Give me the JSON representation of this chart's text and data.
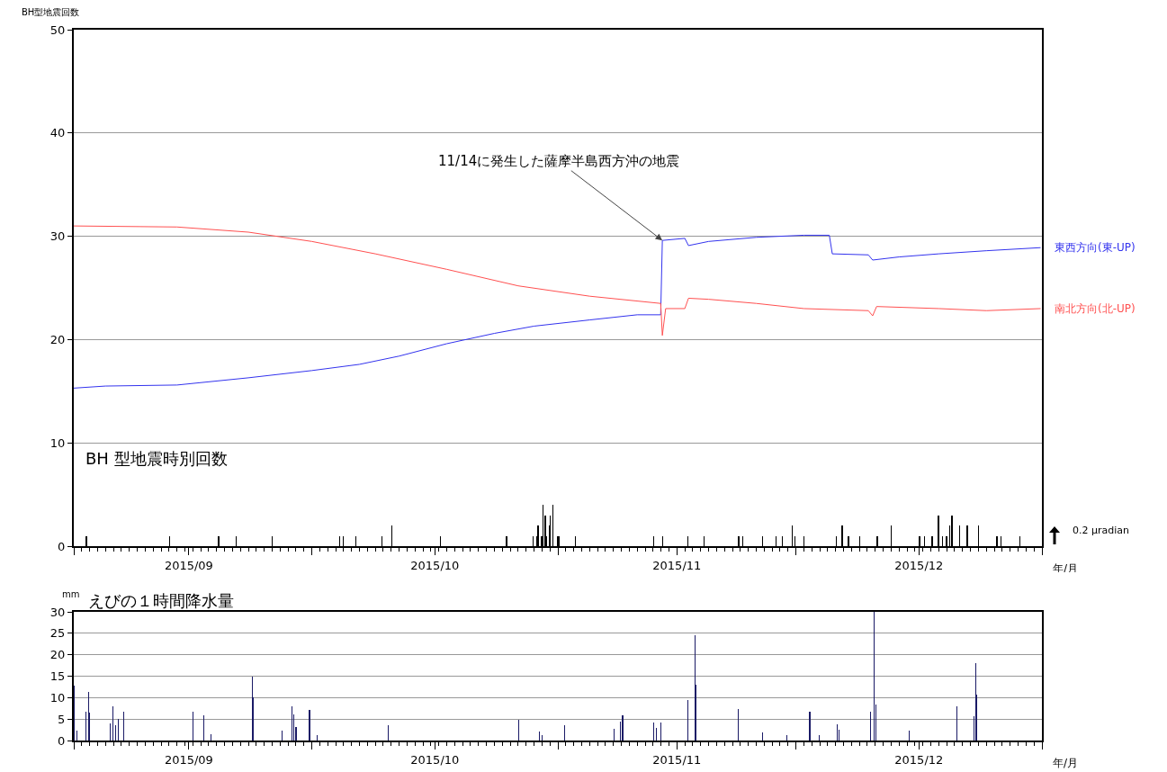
{
  "chart_data": [
    {
      "type": "bar",
      "ylabel": "BH型地震回数",
      "xlabel": "年/月",
      "annotations": [
        "BH 型地震時別回数",
        {
          "text": "11/14に発生した薩摩半島西方沖の地震",
          "x": "2015-11-14T04:00",
          "y": 29.6
        },
        "0.2 μradian"
      ],
      "xlim": [
        "2015-09-01",
        "2016-01-01"
      ],
      "xticks": [
        {
          "value": "2015-09-01",
          "label": null
        },
        {
          "value": "2015-09-15T12:00",
          "label": "2015/09"
        },
        {
          "value": "2015-10-01",
          "label": null
        },
        {
          "value": "2015-10-16T12:00",
          "label": "2015/10"
        },
        {
          "value": "2015-11-01",
          "label": null
        },
        {
          "value": "2015-11-16",
          "label": "2015/11"
        },
        {
          "value": "2015-12-01",
          "label": null
        },
        {
          "value": "2015-12-16T12:00",
          "label": "2015/12"
        },
        {
          "value": "2016-01-01",
          "label": null
        }
      ],
      "ylim": [
        0,
        50
      ],
      "yticks": [
        0,
        10,
        20,
        30,
        40,
        50
      ],
      "grid": "y",
      "legend": false,
      "series": [
        {
          "type": "bar",
          "color": "#000000",
          "x": [
            "2015-09-02T14:00",
            "2015-09-13T03:00",
            "2015-09-19T06:00",
            "2015-09-21T12:00",
            "2015-09-26T01:00",
            "2015-10-04T13:00",
            "2015-10-05T00:00",
            "2015-10-06T14:00",
            "2015-10-09T19:00",
            "2015-10-11T03:00",
            "2015-10-17T04:00",
            "2015-10-25T13:00",
            "2015-10-28T20:00",
            "2015-10-29T07:00",
            "2015-10-29T12:00",
            "2015-10-29T23:00",
            "2015-10-30T04:00",
            "2015-10-30T10:00",
            "2015-10-30T15:00",
            "2015-10-30T21:00",
            "2015-10-31T02:00",
            "2015-10-31T10:00",
            "2015-11-01T00:00",
            "2015-11-01T05:00",
            "2015-11-03T04:00",
            "2015-11-13T03:00",
            "2015-11-14T06:00",
            "2015-11-17T08:00",
            "2015-11-19T09:00",
            "2015-11-23T19:00",
            "2015-11-24T08:00",
            "2015-11-26T20:00",
            "2015-11-28T13:00",
            "2015-11-29T06:00",
            "2015-11-30T14:00",
            "2015-11-30T20:00",
            "2015-12-02T01:00",
            "2015-12-06T01:00",
            "2015-12-06T20:00",
            "2015-12-07T15:00",
            "2015-12-09T02:00",
            "2015-12-11T06:00",
            "2015-12-12T23:00",
            "2015-12-16T14:00",
            "2015-12-17T06:00",
            "2015-12-18T04:00",
            "2015-12-18T23:00",
            "2015-12-19T12:00",
            "2015-12-19T21:00",
            "2015-12-20T02:00",
            "2015-12-20T10:00",
            "2015-12-20T16:00",
            "2015-12-21T16:00",
            "2015-12-22T14:00",
            "2015-12-23T23:00",
            "2015-12-26T08:00",
            "2015-12-26T19:00",
            "2015-12-29T06:00"
          ],
          "values": [
            1,
            1,
            1,
            1,
            1,
            1,
            1,
            1,
            1,
            2,
            1,
            1,
            1,
            1,
            2,
            1,
            4,
            3,
            1,
            2,
            3,
            4,
            1,
            1,
            1,
            1,
            1,
            1,
            1,
            1,
            1,
            1,
            1,
            1,
            2,
            1,
            1,
            1,
            2,
            1,
            1,
            1,
            2,
            1,
            1,
            1,
            3,
            1,
            1,
            1,
            2,
            3,
            2,
            2,
            2,
            1,
            1,
            1
          ]
        },
        {
          "type": "line",
          "name": "東西方向(東-UP)",
          "color": "#3333ee",
          "x": [
            "2015-09-01",
            "2015-09-05",
            "2015-09-14",
            "2015-09-23",
            "2015-10-01",
            "2015-10-07",
            "2015-10-12",
            "2015-10-18",
            "2015-10-24",
            "2015-10-29",
            "2015-11-05",
            "2015-11-11",
            "2015-11-13T23:00",
            "2015-11-14T04:00",
            "2015-11-17T00:00",
            "2015-11-17T11:00",
            "2015-11-20",
            "2015-11-26",
            "2015-12-02",
            "2015-12-05T05:00",
            "2015-12-05T14:00",
            "2015-12-10T03:00",
            "2015-12-10T16:00",
            "2015-12-14",
            "2015-12-19",
            "2015-12-25",
            "2015-12-31T20:00"
          ],
          "values": [
            15.3,
            15.5,
            15.6,
            16.3,
            17.0,
            17.6,
            18.4,
            19.6,
            20.6,
            21.3,
            21.9,
            22.4,
            22.4,
            29.6,
            29.8,
            29.1,
            29.5,
            29.9,
            30.1,
            30.1,
            28.3,
            28.2,
            27.7,
            28.0,
            28.3,
            28.6,
            28.9
          ]
        },
        {
          "type": "line",
          "name": "南北方向(北-UP)",
          "color": "#ff5050",
          "x": [
            "2015-09-01",
            "2015-09-14",
            "2015-09-23",
            "2015-10-01",
            "2015-10-09",
            "2015-10-18",
            "2015-10-27",
            "2015-11-05",
            "2015-11-13T23:00",
            "2015-11-14T04:00",
            "2015-11-14T14:00",
            "2015-11-17T00:00",
            "2015-11-17T11:00",
            "2015-11-20",
            "2015-11-26",
            "2015-12-02",
            "2015-12-10T03:00",
            "2015-12-10T16:00",
            "2015-12-11T04:00",
            "2015-12-19",
            "2015-12-25",
            "2015-12-31T20:00"
          ],
          "values": [
            31.0,
            30.9,
            30.4,
            29.5,
            28.3,
            26.8,
            25.2,
            24.2,
            23.5,
            20.4,
            23.0,
            23.0,
            24.0,
            23.9,
            23.5,
            23.0,
            22.8,
            22.3,
            23.2,
            23.0,
            22.8,
            23.0
          ]
        }
      ]
    },
    {
      "type": "bar",
      "title": "えびの１時間降水量",
      "ylabel": "mm",
      "xlabel": "年/月",
      "xlim": [
        "2015-09-01",
        "2016-01-01"
      ],
      "xticks": [
        {
          "value": "2015-09-01",
          "label": null
        },
        {
          "value": "2015-09-15T12:00",
          "label": "2015/09"
        },
        {
          "value": "2015-10-01",
          "label": null
        },
        {
          "value": "2015-10-16T12:00",
          "label": "2015/10"
        },
        {
          "value": "2015-11-01",
          "label": null
        },
        {
          "value": "2015-11-16",
          "label": "2015/11"
        },
        {
          "value": "2015-12-01",
          "label": null
        },
        {
          "value": "2015-12-16T12:00",
          "label": "2015/12"
        },
        {
          "value": "2016-01-01",
          "label": null
        }
      ],
      "ylim": [
        0,
        30
      ],
      "yticks": [
        0,
        5,
        10,
        15,
        20,
        25,
        30
      ],
      "grid": "y",
      "legend": false,
      "color": "#1a1a66",
      "x": [
        "2015-09-01T02:00",
        "2015-09-01T09:00",
        "2015-09-02T13:00",
        "2015-09-02T20:00",
        "2015-09-03T00:00",
        "2015-09-05T14:00",
        "2015-09-05T23:00",
        "2015-09-06T06:00",
        "2015-09-06T14:00",
        "2015-09-07T08:00",
        "2015-09-16T01:00",
        "2015-09-17T08:00",
        "2015-09-18T08:00",
        "2015-09-23T11:00",
        "2015-09-23T16:00",
        "2015-09-27T06:00",
        "2015-09-28T11:00",
        "2015-09-28T18:00",
        "2015-09-29T00:00",
        "2015-09-30T17:00",
        "2015-10-01T16:00",
        "2015-10-10T16:00",
        "2015-10-27T02:00",
        "2015-10-29T17:00",
        "2015-10-30T00:00",
        "2015-11-01T20:00",
        "2015-11-08T02:00",
        "2015-11-08T21:00",
        "2015-11-09T04:00",
        "2015-11-13T02:00",
        "2015-11-13T09:00",
        "2015-11-13T23:00",
        "2015-11-17T08:00",
        "2015-11-18T06:00",
        "2015-11-18T10:00",
        "2015-11-23T17:00",
        "2015-11-26T18:00",
        "2015-11-29T21:00",
        "2015-12-02T18:00",
        "2015-12-03T22:00",
        "2015-12-06T04:00",
        "2015-12-06T10:00",
        "2015-12-10T10:00",
        "2015-12-10T21:00",
        "2015-12-11T02:00",
        "2015-12-15T06:00",
        "2015-12-21T06:00",
        "2015-12-23T11:00",
        "2015-12-23T15:00",
        "2015-12-23T18:00"
      ],
      "values": [
        12.9,
        2.4,
        6.8,
        11.4,
        6.4,
        3.9,
        7.9,
        3.5,
        5.1,
        6.8,
        6.8,
        5.9,
        1.5,
        14.9,
        10.1,
        2.4,
        7.9,
        6.1,
        3.1,
        7.2,
        1.3,
        3.5,
        4.8,
        2.0,
        1.3,
        3.5,
        2.7,
        4.4,
        5.9,
        4.2,
        3.0,
        4.2,
        9.4,
        24.6,
        13.0,
        7.4,
        1.9,
        1.3,
        6.8,
        1.3,
        3.7,
        2.6,
        6.7,
        30.0,
        8.4,
        2.4,
        7.9,
        5.6,
        18.0,
        10.7
      ]
    }
  ]
}
